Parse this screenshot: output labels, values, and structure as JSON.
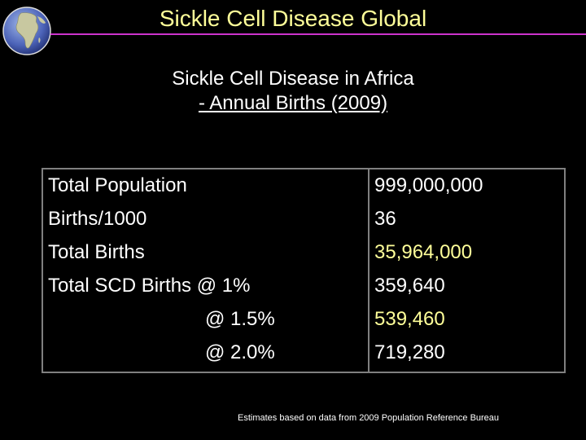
{
  "header": {
    "title": "Sickle Cell Disease Global"
  },
  "subtitle": {
    "line1": "Sickle Cell Disease in Africa",
    "line2": "- Annual Births (2009)"
  },
  "table": {
    "rows": [
      {
        "label": "Total Population",
        "value": "999,000,000",
        "highlight": false
      },
      {
        "label": "Births/1000",
        "value": "36",
        "highlight": false
      },
      {
        "label": "Total Births",
        "value": "35,964,000",
        "highlight": true
      },
      {
        "label": "Total SCD Births @ 1%",
        "value": "359,640",
        "highlight": false
      },
      {
        "label": "@ 1.5%",
        "value": "539,460",
        "highlight": true
      },
      {
        "label": "@ 2.0%",
        "value": "719,280",
        "highlight": false
      }
    ]
  },
  "footnote": "Estimates based on data from 2009 Population Reference Bureau",
  "colors": {
    "background": "#000000",
    "title": "#ffff99",
    "rule": "#cc33cc",
    "highlight": "#ffff99",
    "grid": "#808080"
  },
  "icons": {
    "logo": "globe-icon"
  }
}
